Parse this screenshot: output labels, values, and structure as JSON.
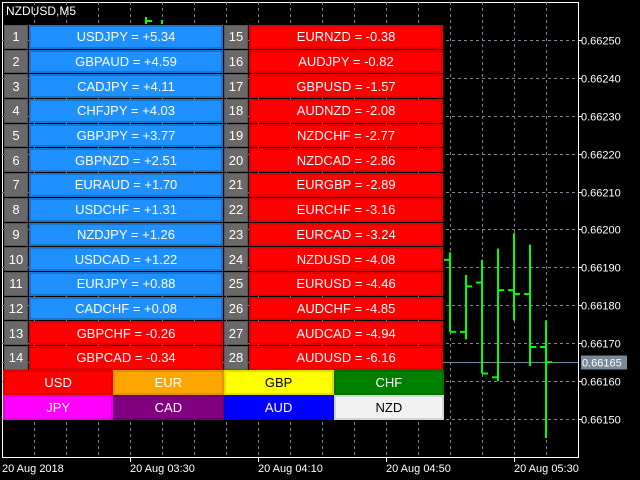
{
  "window": {
    "title": "NZDUSD,M5"
  },
  "strength_table": {
    "left": [
      {
        "rank": "1",
        "text": "USDJPY = +5.34",
        "dir": "pos"
      },
      {
        "rank": "2",
        "text": "GBPAUD = +4.59",
        "dir": "pos"
      },
      {
        "rank": "3",
        "text": "CADJPY = +4.11",
        "dir": "pos"
      },
      {
        "rank": "4",
        "text": "CHFJPY = +4.03",
        "dir": "pos"
      },
      {
        "rank": "5",
        "text": "GBPJPY = +3.77",
        "dir": "pos"
      },
      {
        "rank": "6",
        "text": "GBPNZD = +2.51",
        "dir": "pos"
      },
      {
        "rank": "7",
        "text": "EURAUD = +1.70",
        "dir": "pos"
      },
      {
        "rank": "8",
        "text": "USDCHF = +1.31",
        "dir": "pos"
      },
      {
        "rank": "9",
        "text": "NZDJPY = +1.26",
        "dir": "pos"
      },
      {
        "rank": "10",
        "text": "USDCAD = +1.22",
        "dir": "pos"
      },
      {
        "rank": "11",
        "text": "EURJPY = +0.88",
        "dir": "pos"
      },
      {
        "rank": "12",
        "text": "CADCHF = +0.08",
        "dir": "pos"
      },
      {
        "rank": "13",
        "text": "GBPCHF = -0.26",
        "dir": "neg"
      },
      {
        "rank": "14",
        "text": "GBPCAD = -0.34",
        "dir": "neg"
      }
    ],
    "right": [
      {
        "rank": "15",
        "text": "EURNZD = -0.38",
        "dir": "neg"
      },
      {
        "rank": "16",
        "text": "AUDJPY = -0.82",
        "dir": "neg"
      },
      {
        "rank": "17",
        "text": "GBPUSD = -1.57",
        "dir": "neg"
      },
      {
        "rank": "18",
        "text": "AUDNZD = -2.08",
        "dir": "neg"
      },
      {
        "rank": "19",
        "text": "NZDCHF = -2.77",
        "dir": "neg"
      },
      {
        "rank": "20",
        "text": "NZDCAD = -2.86",
        "dir": "neg"
      },
      {
        "rank": "21",
        "text": "EURGBP = -2.89",
        "dir": "neg"
      },
      {
        "rank": "22",
        "text": "EURCHF = -3.16",
        "dir": "neg"
      },
      {
        "rank": "23",
        "text": "EURCAD = -3.24",
        "dir": "neg"
      },
      {
        "rank": "24",
        "text": "NZDUSD = -4.08",
        "dir": "neg"
      },
      {
        "rank": "25",
        "text": "EURUSD = -4.46",
        "dir": "neg"
      },
      {
        "rank": "26",
        "text": "AUDCHF = -4.85",
        "dir": "neg"
      },
      {
        "rank": "27",
        "text": "AUDCAD = -4.94",
        "dir": "neg"
      },
      {
        "rank": "28",
        "text": "AUDUSD = -6.16",
        "dir": "neg"
      }
    ],
    "colors": {
      "positive": "#1e90ff",
      "negative": "#ff0000",
      "rank": "#696969"
    }
  },
  "currencies": [
    {
      "label": "USD",
      "bg": "#ff0000",
      "fg": "#ffffff"
    },
    {
      "label": "EUR",
      "bg": "#ffa500",
      "fg": "#ffffff"
    },
    {
      "label": "GBP",
      "bg": "#ffff00",
      "fg": "#000000"
    },
    {
      "label": "CHF",
      "bg": "#008000",
      "fg": "#ffffff"
    },
    {
      "label": "JPY",
      "bg": "#ff00ff",
      "fg": "#ffffff"
    },
    {
      "label": "CAD",
      "bg": "#800080",
      "fg": "#ffffff"
    },
    {
      "label": "AUD",
      "bg": "#0000ff",
      "fg": "#ffffff"
    },
    {
      "label": "NZD",
      "bg": "#f2f2f2",
      "fg": "#000000"
    }
  ],
  "chart_data": {
    "type": "ohlc",
    "symbol": "NZDUSD",
    "timeframe": "M5",
    "grid": true,
    "y_ticks": [
      "0.66250",
      "0.66240",
      "0.66230",
      "0.66220",
      "0.66210",
      "0.66200",
      "0.66190",
      "0.66180",
      "0.66170",
      "0.66160",
      "0.66150"
    ],
    "ylim": [
      0.66137,
      0.66261
    ],
    "x_ticks": [
      "20 Aug 2018",
      "20 Aug 03:30",
      "20 Aug 04:10",
      "20 Aug 04:50",
      "20 Aug 05:30"
    ],
    "current_price": "0.66165",
    "bar_color": "#00ff00",
    "bars": [
      {
        "o": 0.66192,
        "h": 0.66194,
        "l": 0.66173,
        "c": 0.66173
      },
      {
        "o": 0.66173,
        "h": 0.66188,
        "l": 0.66171,
        "c": 0.66185
      },
      {
        "o": 0.66186,
        "h": 0.66192,
        "l": 0.66162,
        "c": 0.66162
      },
      {
        "o": 0.66161,
        "h": 0.66195,
        "l": 0.6616,
        "c": 0.66184
      },
      {
        "o": 0.66184,
        "h": 0.66199,
        "l": 0.66176,
        "c": 0.66183
      },
      {
        "o": 0.66183,
        "h": 0.66196,
        "l": 0.66164,
        "c": 0.66169
      },
      {
        "o": 0.66169,
        "h": 0.66176,
        "l": 0.66145,
        "c": 0.66165
      }
    ]
  }
}
